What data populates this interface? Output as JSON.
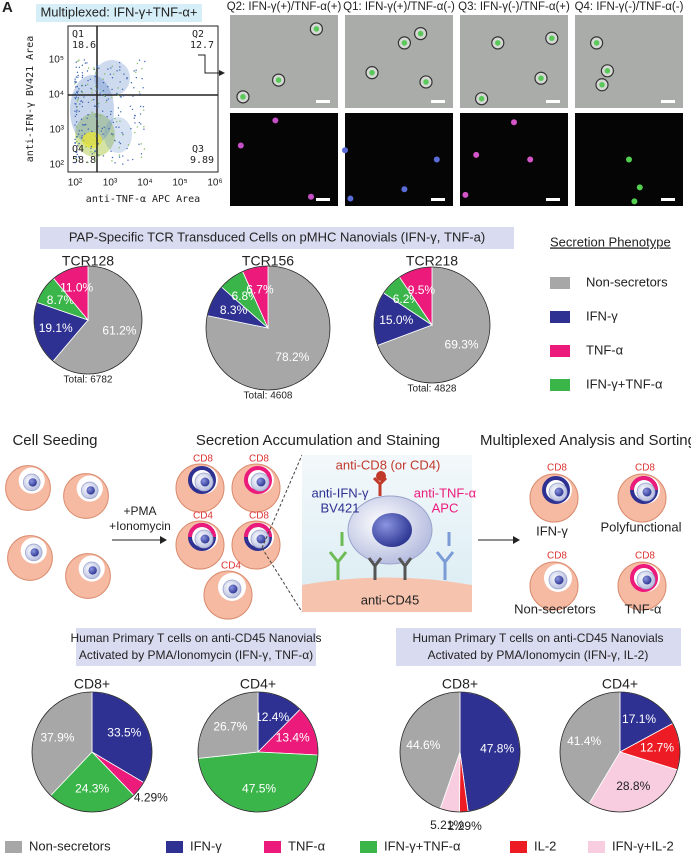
{
  "panel_label": "A",
  "flow": {
    "title": "Multiplexed: IFN-γ+TNF-α+",
    "quadrants": [
      {
        "name": "Q1",
        "value": 18.6
      },
      {
        "name": "Q2",
        "value": 12.7
      },
      {
        "name": "Q3",
        "value": 9.89
      },
      {
        "name": "Q4",
        "value": 58.8
      }
    ],
    "y_label": "anti-IFN-γ BV421 Area",
    "x_label": "anti-TNF-α APC Area",
    "xticks": [
      "10²",
      "10³",
      "10⁴",
      "10⁵",
      "10⁶"
    ],
    "yticks": [
      "10²",
      "10³",
      "10⁴",
      "10⁵"
    ]
  },
  "microscopy_titles": [
    "Q2: IFN-γ(+)/TNF-α(+)",
    "Q1: IFN-γ(+)/TNF-α(-)",
    "Q3: IFN-γ(-)/TNF-α(+)",
    "Q4: IFN-γ(-)/TNF-α(-)"
  ],
  "tcr_banner": "PAP-Specific TCR Transduced Cells on pMHC Nanovials (IFN-γ, TNF-a)",
  "phenotype_legend": {
    "title": "Secretion Phenotype",
    "items": [
      {
        "name": "Non-secretors",
        "color": "#a7a7a7"
      },
      {
        "name": "IFN-γ",
        "color": "#2e3192"
      },
      {
        "name": "TNF-α",
        "color": "#ec1b7b"
      },
      {
        "name": "IFN-γ+TNF-α",
        "color": "#3ab54a"
      }
    ]
  },
  "diagram": {
    "seeding_title": "Cell Seeding",
    "stimulus": [
      "+PMA",
      "+Ionomycin"
    ],
    "staining_title": "Secretion Accumulation and Staining",
    "vial_labels": [
      "CD8",
      "CD8",
      "CD4",
      "CD8",
      "CD4"
    ],
    "anti_cd8": "anti-CD8 (or CD4)",
    "anti_ifn": [
      "anti-IFN-γ",
      "BV421"
    ],
    "anti_tnf": [
      "anti-TNF-α",
      "APC"
    ],
    "anti_cd45": "anti-CD45",
    "analysis_title": "Multiplexed Analysis and Sorting",
    "sorted": [
      {
        "marker": "CD8",
        "label": "IFN-γ"
      },
      {
        "marker": "CD8",
        "label": "Polyfunctional"
      },
      {
        "marker": "CD8",
        "label": "Non-secretors"
      },
      {
        "marker": "CD8",
        "label": "TNF-α"
      }
    ]
  },
  "primary_banners": [
    [
      "Human Primary T cells on anti-CD45 Nanovials",
      "Activated by PMA/Ionomycin (IFN-γ, TNF-α)"
    ],
    [
      "Human Primary T cells on anti-CD45 Nanovials",
      "Activated by PMA/Ionomycin (IFN-γ, IL-2)"
    ]
  ],
  "chart_data": [
    {
      "type": "pie",
      "title": "TCR128",
      "values": [
        61.2,
        19.1,
        8.7,
        11.0
      ],
      "value_labels": [
        "61.2%",
        "19.1%",
        "8.7%",
        "11.0%"
      ],
      "colors": [
        "#a7a7a7",
        "#2e3192",
        "#3ab54a",
        "#ec1b7b"
      ],
      "total": "Total: 6782"
    },
    {
      "type": "pie",
      "title": "TCR156",
      "values": [
        78.2,
        8.3,
        6.8,
        6.7
      ],
      "value_labels": [
        "78.2%",
        "8.3%",
        "6.8%",
        "6.7%"
      ],
      "colors": [
        "#a7a7a7",
        "#2e3192",
        "#3ab54a",
        "#ec1b7b"
      ],
      "total": "Total: 4608"
    },
    {
      "type": "pie",
      "title": "TCR218",
      "values": [
        69.3,
        15.0,
        6.2,
        9.5
      ],
      "value_labels": [
        "69.3%",
        "15.0%",
        "6.2%",
        "9.5%"
      ],
      "colors": [
        "#a7a7a7",
        "#2e3192",
        "#3ab54a",
        "#ec1b7b"
      ],
      "total": "Total: 4828"
    },
    {
      "type": "pie",
      "title": "CD8+",
      "values": [
        33.5,
        4.29,
        24.3,
        37.9
      ],
      "value_labels": [
        "33.5%",
        "4.29%",
        "24.3%",
        "37.9%"
      ],
      "colors": [
        "#2e3192",
        "#ec1b7b",
        "#3ab54a",
        "#a7a7a7"
      ]
    },
    {
      "type": "pie",
      "title": "CD4+",
      "values": [
        12.4,
        13.4,
        47.5,
        26.7
      ],
      "value_labels": [
        "12.4%",
        "13.4%",
        "47.5%",
        "26.7%"
      ],
      "colors": [
        "#2e3192",
        "#ec1b7b",
        "#3ab54a",
        "#a7a7a7"
      ]
    },
    {
      "type": "pie",
      "title": "CD8+",
      "values": [
        47.8,
        2.29,
        5.21,
        44.6
      ],
      "value_labels": [
        "47.8%",
        "2.29%",
        "5.21%",
        "44.6%"
      ],
      "colors": [
        "#2e3192",
        "#ed1c24",
        "#f8cde0",
        "#a7a7a7"
      ]
    },
    {
      "type": "pie",
      "title": "CD4+",
      "values": [
        17.1,
        12.7,
        28.8,
        41.4
      ],
      "value_labels": [
        "17.1%",
        "12.7%",
        "28.8%",
        "41.4%"
      ],
      "colors": [
        "#2e3192",
        "#ed1c24",
        "#f8cde0",
        "#a7a7a7"
      ]
    }
  ],
  "bottom_legend": [
    {
      "name": "Non-secretors",
      "color": "#a7a7a7"
    },
    {
      "name": "IFN-γ",
      "color": "#2e3192"
    },
    {
      "name": "TNF-α",
      "color": "#ec1b7b"
    },
    {
      "name": "IFN-γ+TNF-α",
      "color": "#3ab54a"
    },
    {
      "name": "IL-2",
      "color": "#ed1c24"
    },
    {
      "name": "IFN-γ+IL-2",
      "color": "#f8cde0"
    }
  ]
}
